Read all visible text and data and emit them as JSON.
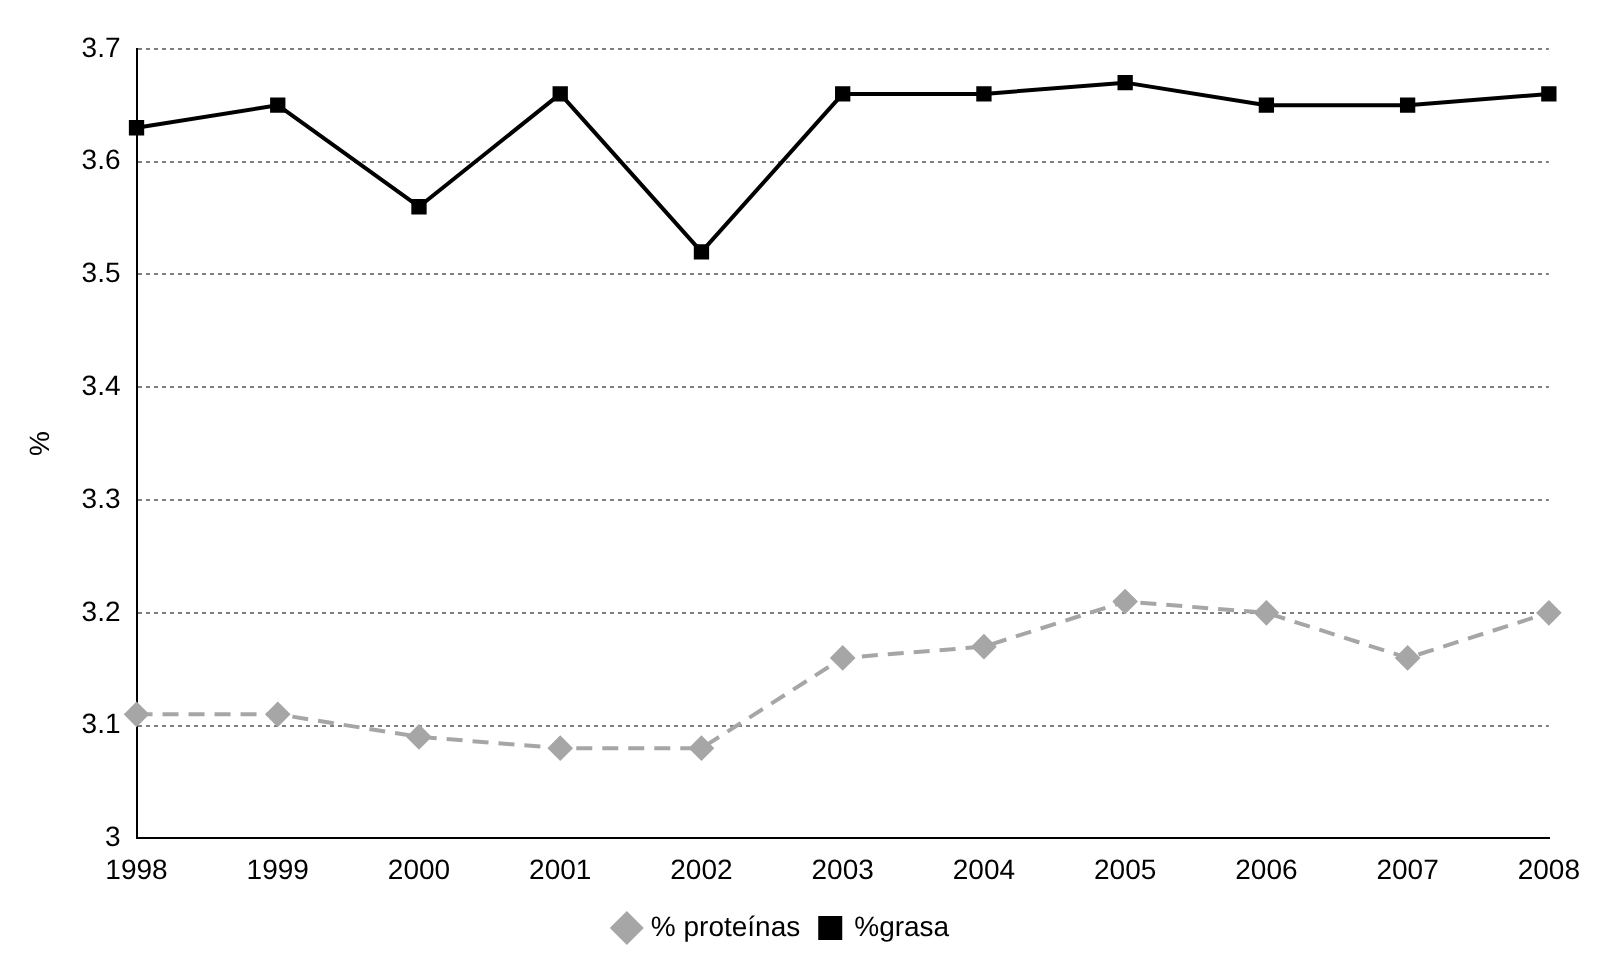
{
  "chart_data": {
    "type": "line",
    "ylabel": "%",
    "categories": [
      "1998",
      "1999",
      "2000",
      "2001",
      "2002",
      "2003",
      "2004",
      "2005",
      "2006",
      "2007",
      "2008"
    ],
    "series": [
      {
        "name": "% proteínas",
        "color": "#a6a6a6",
        "marker": "diamond",
        "line_style": "dashed",
        "values": [
          3.11,
          3.11,
          3.09,
          3.08,
          3.08,
          3.16,
          3.17,
          3.21,
          3.2,
          3.16,
          3.2
        ]
      },
      {
        "name": "%grasa",
        "color": "#000000",
        "marker": "square",
        "line_style": "solid",
        "values": [
          3.63,
          3.65,
          3.56,
          3.66,
          3.52,
          3.66,
          3.66,
          3.67,
          3.65,
          3.65,
          3.66
        ]
      }
    ],
    "ylim": [
      3,
      3.7
    ],
    "yticks": [
      3,
      3.1,
      3.2,
      3.3,
      3.4,
      3.5,
      3.6,
      3.7
    ],
    "grid": "y",
    "legend": "bottom"
  }
}
